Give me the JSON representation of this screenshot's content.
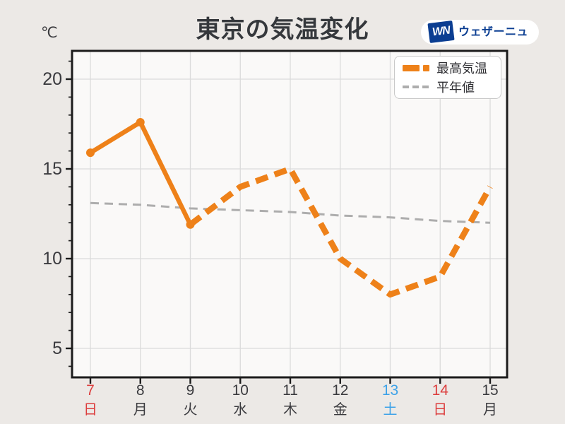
{
  "colors": {
    "background": "#ECE9E6",
    "plot_background": "#FAF9F8",
    "grid": "#DBDBDB",
    "axis_border": "#1C1C1C",
    "text": "#3A3A3E",
    "title_text": "#35383C",
    "orange": "#EE8119",
    "normal_gray": "#ADADAD",
    "weekday_red": "#DC3E3E",
    "weekday_blue": "#3DA2E8",
    "logo_blue": "#0B3E92"
  },
  "header": {
    "title": "東京の気温変化",
    "unit_label": "℃"
  },
  "logo": {
    "mark_text": "WN",
    "brand_text": "ウェザーニュース"
  },
  "legend": {
    "items": [
      {
        "label": "最高気温",
        "color": "#EE8119",
        "style": "thick-dashed"
      },
      {
        "label": "平年値",
        "color": "#ADADAD",
        "style": "thin-dashed"
      }
    ]
  },
  "chart_data": {
    "type": "line",
    "title": "東京の気温変化",
    "ylabel": "℃",
    "xlabel": "",
    "ylim": [
      3.4,
      21.6
    ],
    "y_ticks": [
      5,
      10,
      15,
      20
    ],
    "y_minor_tick_step": 1,
    "grid": true,
    "legend_position": "top-right",
    "x_categories": [
      {
        "date": "7",
        "weekday": "日",
        "color": "red"
      },
      {
        "date": "8",
        "weekday": "月",
        "color": "default"
      },
      {
        "date": "9",
        "weekday": "火",
        "color": "default"
      },
      {
        "date": "10",
        "weekday": "水",
        "color": "default"
      },
      {
        "date": "11",
        "weekday": "木",
        "color": "default"
      },
      {
        "date": "12",
        "weekday": "金",
        "color": "default"
      },
      {
        "date": "13",
        "weekday": "土",
        "color": "blue"
      },
      {
        "date": "14",
        "weekday": "日",
        "color": "red"
      },
      {
        "date": "15",
        "weekday": "月",
        "color": "default"
      }
    ],
    "series": [
      {
        "name": "最高気温",
        "color": "#EE8119",
        "values": [
          15.9,
          17.6,
          11.9,
          14,
          15,
          10,
          8,
          9,
          14
        ],
        "observed_until_index": 2,
        "line_style": "solid with round markers through index 2 (observed), thick dashed after (forecast)"
      },
      {
        "name": "平年値",
        "color": "#ADADAD",
        "values": [
          13.1,
          13.0,
          12.8,
          12.7,
          12.6,
          12.4,
          12.3,
          12.1,
          12.0
        ],
        "line_style": "thin dashed"
      }
    ]
  }
}
